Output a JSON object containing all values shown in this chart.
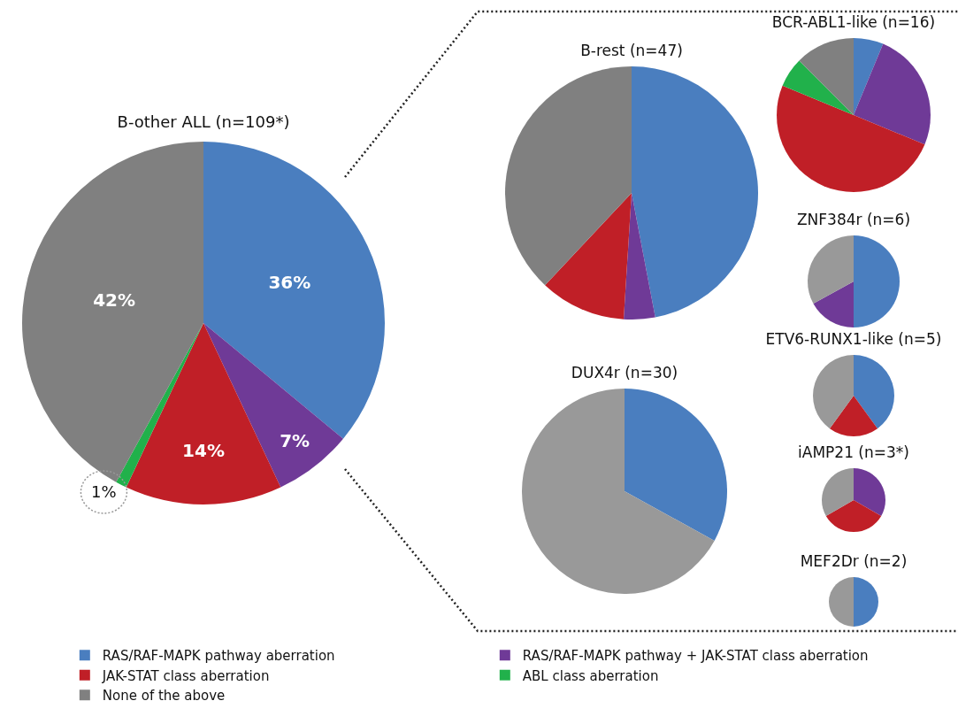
{
  "chart_data": [
    {
      "type": "pie",
      "title": "B-other ALL (n=109*)",
      "categories": [
        "RAS/RAF-MAPK pathway aberration",
        "RAS/RAF-MAPK pathway + JAK-STAT class aberration",
        "JAK-STAT class aberration",
        "ABL class aberration",
        "None of the above"
      ],
      "values": [
        36,
        7,
        14,
        1,
        42
      ],
      "colors": [
        "#4a7ebf",
        "#6f3a97",
        "#c01f27",
        "#21b14b",
        "#808080"
      ],
      "value_labels": [
        "36%",
        "7%",
        "14%",
        "1%",
        "42%"
      ],
      "legend": "bottom"
    },
    {
      "type": "pie",
      "title": "B-rest (n=47)",
      "categories": [
        null,
        null,
        null,
        null
      ],
      "values": [
        47,
        4,
        11,
        38
      ],
      "colors": [
        "#4a7ebf",
        "#6f3a97",
        "#c01f27",
        "#808080"
      ]
    },
    {
      "type": "pie",
      "title": "BCR-ABL1-like (n=16)",
      "categories": [
        null,
        null,
        null,
        null,
        null
      ],
      "values": [
        6.25,
        25,
        50,
        6.25,
        12.5
      ],
      "colors": [
        "#4a7ebf",
        "#6f3a97",
        "#c01f27",
        "#21b14b",
        "#808080"
      ]
    },
    {
      "type": "pie",
      "title": "ZNF384r (n=6)",
      "categories": [
        null,
        null,
        null
      ],
      "values": [
        50,
        17,
        33
      ],
      "colors": [
        "#4a7ebf",
        "#6f3a97",
        "#999999"
      ]
    },
    {
      "type": "pie",
      "title": "DUX4r (n=30)",
      "categories": [
        null,
        null
      ],
      "values": [
        33,
        67
      ],
      "colors": [
        "#4a7ebf",
        "#999999"
      ]
    },
    {
      "type": "pie",
      "title": "ETV6-RUNX1-like (n=5)",
      "categories": [
        null,
        null,
        null
      ],
      "values": [
        40,
        20,
        40
      ],
      "colors": [
        "#4a7ebf",
        "#c01f27",
        "#999999"
      ]
    },
    {
      "type": "pie",
      "title": "iAMP21 (n=3*)",
      "categories": [
        null,
        null,
        null
      ],
      "values": [
        33.3,
        33.4,
        33.3
      ],
      "colors": [
        "#6f3a97",
        "#c01f27",
        "#999999"
      ]
    },
    {
      "type": "pie",
      "title": "MEF2Dr (n=2)",
      "categories": [
        null,
        null
      ],
      "values": [
        50,
        50
      ],
      "colors": [
        "#4a7ebf",
        "#999999"
      ]
    }
  ]
}
